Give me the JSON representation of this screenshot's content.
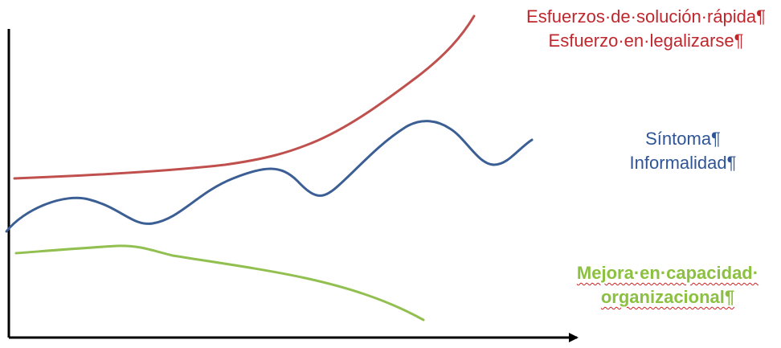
{
  "colors": {
    "axis": "#000000",
    "red": "#c0504d",
    "red_text": "#c0272d",
    "blue": "#3b5f94",
    "blue_text": "#2f5597",
    "green": "#92c050",
    "green_text": "#8cc040"
  },
  "labels": {
    "red": {
      "line1": "Esfuerzos·de·solución·rápida¶",
      "line2": "Esfuerzo·en·legalizarse¶"
    },
    "blue": {
      "line1": "Síntoma¶",
      "line2": "Informalidad¶"
    },
    "green": {
      "line1": "Mejora·en·capacidad·",
      "line2": "organizacional¶"
    }
  }
}
